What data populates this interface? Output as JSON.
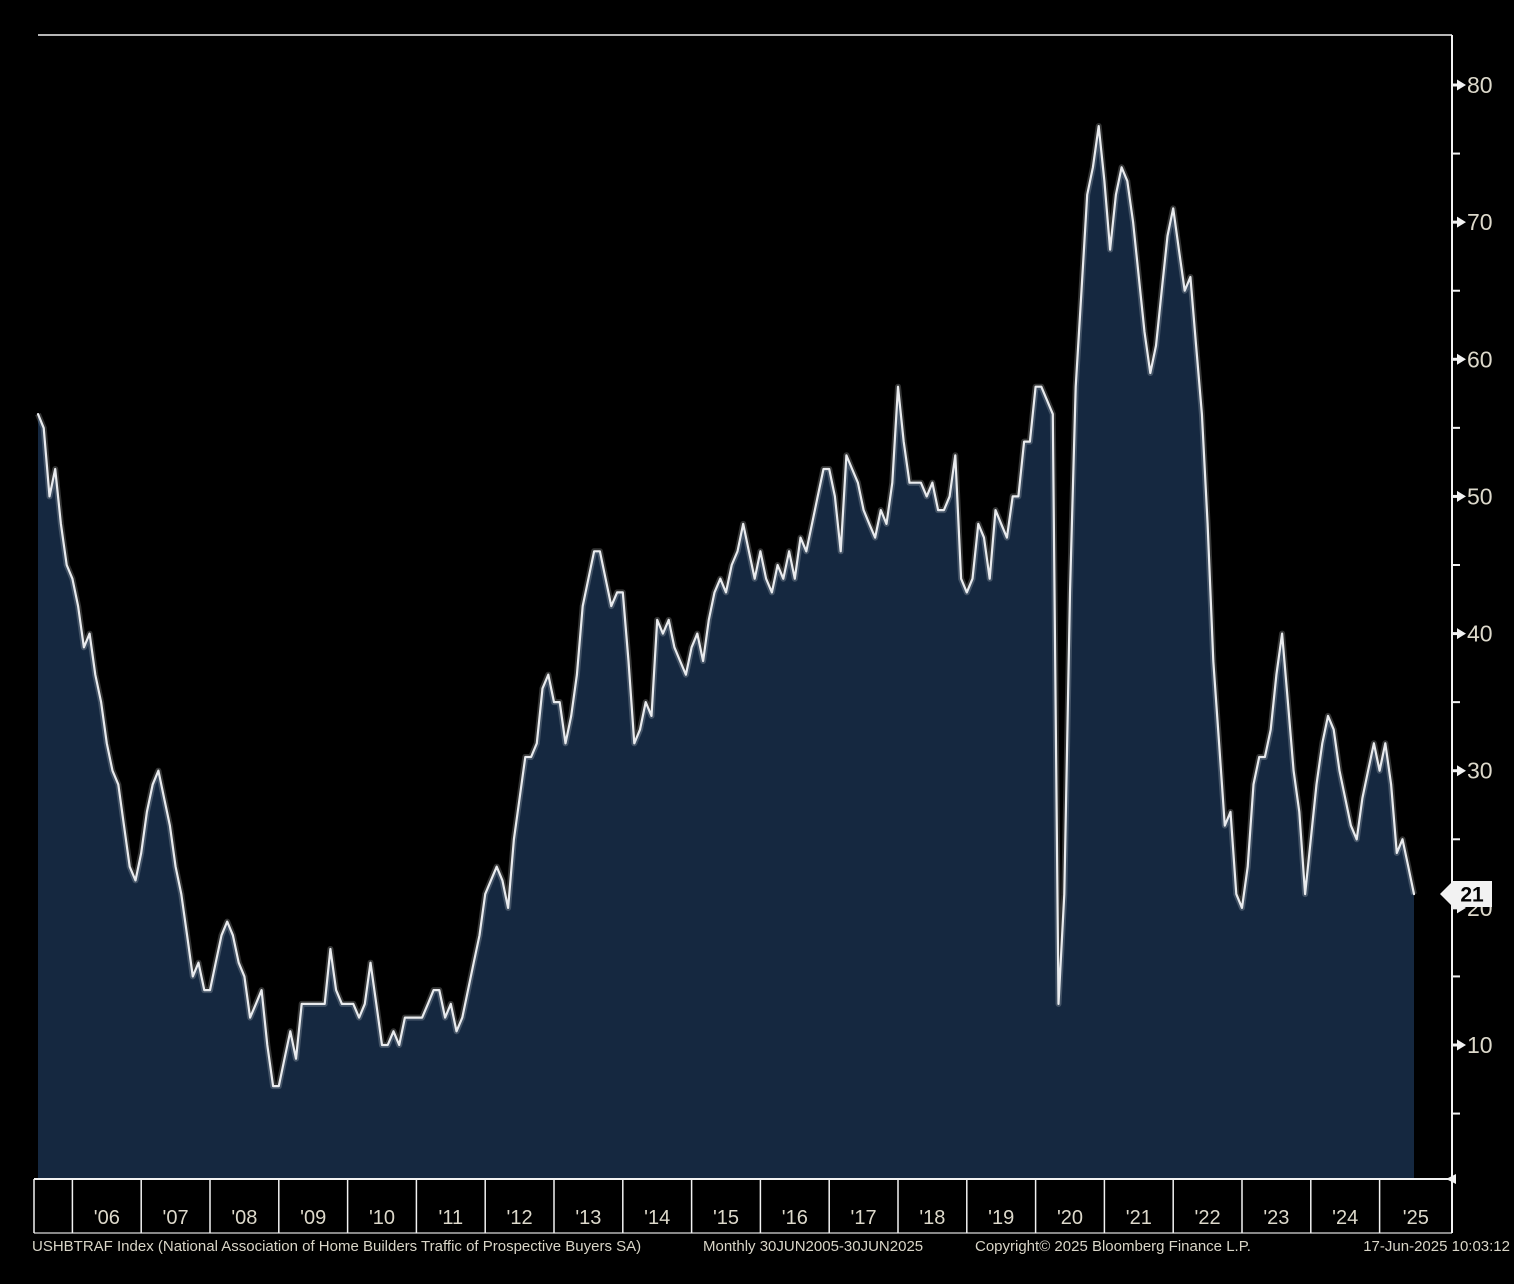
{
  "window": {
    "background": "#000000"
  },
  "chart_data": {
    "type": "area",
    "security": "USHBTRAF Index",
    "title": "USHBTRAF Index (National Association of Home Builders Traffic of Prospective Buyers SA)",
    "frequency_range": "Monthly 30JUN2005-30JUN2025",
    "x_start": "Jun 2005",
    "x_end": "Jun 2025",
    "x_year_labels": [
      "'06",
      "'07",
      "'08",
      "'09",
      "'10",
      "'11",
      "'12",
      "'13",
      "'14",
      "'15",
      "'16",
      "'17",
      "'18",
      "'19",
      "'20",
      "'21",
      "'22",
      "'23",
      "'24",
      "'25"
    ],
    "y_ticks": [
      10,
      20,
      30,
      40,
      50,
      60,
      70,
      80
    ],
    "y_minor_ticks": [
      5,
      15,
      25,
      35,
      45,
      55,
      65,
      75
    ],
    "ylim": [
      0,
      83.7
    ],
    "legend_position": "none",
    "grid": false,
    "last_value": 21,
    "last_value_label": "21",
    "series": [
      {
        "name": "Traffic of Prospective Buyers (SA)",
        "start": "2005-06",
        "freq": "monthly",
        "values": [
          56,
          55,
          50,
          52,
          48,
          45,
          44,
          42,
          39,
          40,
          37,
          35,
          32,
          30,
          29,
          26,
          23,
          22,
          24,
          27,
          29,
          30,
          28,
          26,
          23,
          21,
          18,
          15,
          16,
          14,
          14,
          16,
          18,
          19,
          18,
          16,
          15,
          12,
          13,
          14,
          10,
          7,
          7,
          9,
          11,
          9,
          13,
          13,
          13,
          13,
          13,
          17,
          14,
          13,
          13,
          13,
          12,
          13,
          16,
          13,
          10,
          10,
          11,
          10,
          12,
          12,
          12,
          12,
          13,
          14,
          14,
          12,
          13,
          11,
          12,
          14,
          16,
          18,
          21,
          22,
          23,
          22,
          20,
          25,
          28,
          31,
          31,
          32,
          36,
          37,
          35,
          35,
          32,
          34,
          37,
          42,
          44,
          46,
          46,
          44,
          42,
          43,
          43,
          38,
          32,
          33,
          35,
          34,
          41,
          40,
          41,
          39,
          38,
          37,
          39,
          40,
          38,
          41,
          43,
          44,
          43,
          45,
          46,
          48,
          46,
          44,
          46,
          44,
          43,
          45,
          44,
          46,
          44,
          47,
          46,
          48,
          50,
          52,
          52,
          50,
          46,
          53,
          52,
          51,
          49,
          48,
          47,
          49,
          48,
          51,
          58,
          54,
          51,
          51,
          51,
          50,
          51,
          49,
          49,
          50,
          53,
          44,
          43,
          44,
          48,
          47,
          44,
          49,
          48,
          47,
          50,
          50,
          54,
          54,
          58,
          58,
          57,
          56,
          13,
          21,
          43,
          58,
          65,
          72,
          74,
          77,
          73,
          68,
          72,
          74,
          73,
          70,
          66,
          62,
          59,
          61,
          65,
          69,
          71,
          68,
          65,
          66,
          61,
          56,
          48,
          38,
          32,
          26,
          27,
          21,
          20,
          23,
          29,
          31,
          31,
          33,
          37,
          40,
          35,
          30,
          27,
          21,
          25,
          29,
          32,
          34,
          33,
          30,
          28,
          26,
          25,
          28,
          30,
          32,
          30,
          32,
          29,
          24,
          25,
          23,
          21
        ]
      }
    ],
    "colors": {
      "background": "#000000",
      "area_fill": "#152840",
      "line": "#e9ebee",
      "axis": "#f2f2f2",
      "tick_label": "#ddd9cb",
      "tag_bg": "#f2f2f2",
      "tag_text": "#000000"
    }
  },
  "footer": {
    "description": "USHBTRAF Index (National Association of Home Builders Traffic of Prospective Buyers SA)",
    "frequency": "Monthly 30JUN2005-30JUN2025",
    "copyright": "Copyright© 2025 Bloomberg Finance L.P.",
    "timestamp": "17-Jun-2025 10:03:12"
  }
}
